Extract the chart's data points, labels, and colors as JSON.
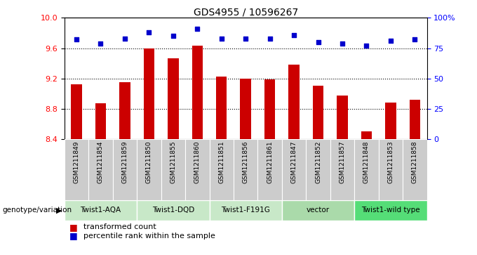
{
  "title": "GDS4955 / 10596267",
  "samples": [
    "GSM1211849",
    "GSM1211854",
    "GSM1211859",
    "GSM1211850",
    "GSM1211855",
    "GSM1211860",
    "GSM1211851",
    "GSM1211856",
    "GSM1211861",
    "GSM1211847",
    "GSM1211852",
    "GSM1211857",
    "GSM1211848",
    "GSM1211853",
    "GSM1211858"
  ],
  "bar_values": [
    9.12,
    8.87,
    9.15,
    9.6,
    9.47,
    9.63,
    9.22,
    9.2,
    9.19,
    9.38,
    9.1,
    8.97,
    8.5,
    8.88,
    8.92
  ],
  "percentile_values": [
    82,
    79,
    83,
    88,
    85,
    91,
    83,
    83,
    83,
    86,
    80,
    79,
    77,
    81,
    82
  ],
  "groups": [
    {
      "label": "Twist1-AQA",
      "indices": [
        0,
        1,
        2
      ]
    },
    {
      "label": "Twist1-DQD",
      "indices": [
        3,
        4,
        5
      ]
    },
    {
      "label": "Twist1-F191G",
      "indices": [
        6,
        7,
        8
      ]
    },
    {
      "label": "vector",
      "indices": [
        9,
        10,
        11
      ]
    },
    {
      "label": "Twist1-wild type",
      "indices": [
        12,
        13,
        14
      ]
    }
  ],
  "ylim_left": [
    8.4,
    10.0
  ],
  "ylim_right": [
    0,
    100
  ],
  "yticks_left": [
    8.4,
    8.8,
    9.2,
    9.6,
    10.0
  ],
  "yticks_right": [
    0,
    25,
    50,
    75,
    100
  ],
  "ytick_labels_right": [
    "0",
    "25",
    "50",
    "75",
    "100%"
  ],
  "hlines": [
    8.8,
    9.2,
    9.6
  ],
  "bar_color": "#cc0000",
  "dot_color": "#0000cc",
  "sample_bg": "#cccccc",
  "group_color_light": "#c8e8c8",
  "group_color_medium": "#aadaaa",
  "group_color_bright": "#55dd77",
  "group_colors": [
    "#c8e8c8",
    "#c8e8c8",
    "#c8e8c8",
    "#aadaaa",
    "#55dd77"
  ]
}
